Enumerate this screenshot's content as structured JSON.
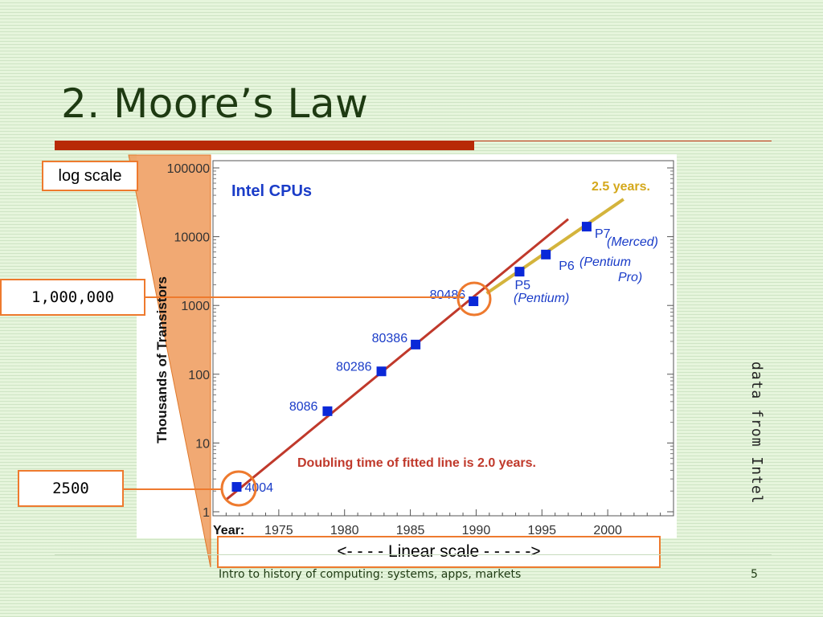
{
  "slide": {
    "title": "2. Moore’s Law",
    "log_scale_label": "log scale",
    "callout_million": "1,000,000",
    "callout_2500": "2500",
    "linear_scale_label": "<- - - - Linear scale - - - - ->",
    "side_note": "data from Intel",
    "footer": "Intro to history of computing: systems, apps, markets",
    "page_number": "5"
  },
  "colors": {
    "title": "#1e3a12",
    "accent_red": "#b82a06",
    "callout_orange": "#ee7a2e",
    "fit_line": "#c0392b",
    "trend_line": "#d4b43c",
    "markers": "#0a28d8",
    "label_blue": "#1a3cc8"
  },
  "chart_data": {
    "type": "scatter",
    "title": "Intel CPUs",
    "ylabel": "Thousands of Transistors",
    "xlabel": "Year:",
    "y_scale": "log",
    "ylim": [
      1,
      100000
    ],
    "xlim": [
      1970,
      2005
    ],
    "x_ticks": [
      1975,
      1980,
      1985,
      1990,
      1995,
      2000
    ],
    "y_ticks": [
      "1",
      "10",
      "100",
      "1000",
      "10000",
      "100000"
    ],
    "points": [
      {
        "name": "4004",
        "x": 1971.8,
        "y": 2.3
      },
      {
        "name": "8086",
        "x": 1978.7,
        "y": 29
      },
      {
        "name": "80286",
        "x": 1982.8,
        "y": 110
      },
      {
        "name": "80386",
        "x": 1985.4,
        "y": 270
      },
      {
        "name": "80486",
        "x": 1989.8,
        "y": 1150
      },
      {
        "name": "P5",
        "x": 1993.3,
        "y": 3100
      },
      {
        "name": "P6",
        "x": 1995.3,
        "y": 5500
      },
      {
        "name": "P7",
        "x": 1998.4,
        "y": 14000
      }
    ],
    "point_sublabels": {
      "P5": "(Pentium)",
      "P6": "(Pentium",
      "P6b": "Pro)",
      "P7": "(Merced)"
    },
    "fit_line": {
      "x": [
        1971,
        1997
      ],
      "y": [
        1.5,
        18000
      ]
    },
    "trend_line": {
      "x": [
        1990.8,
        2001.2
      ],
      "y": [
        1500,
        35000
      ]
    },
    "annotation_fit": "Doubling time of fitted line is 2.0 years.",
    "annotation_trend": "2.5 years."
  }
}
